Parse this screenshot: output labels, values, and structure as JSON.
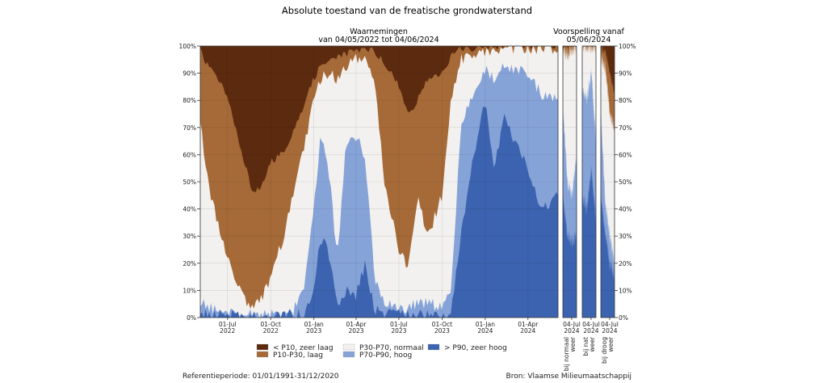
{
  "title": "Absolute toestand van de freatische grondwaterstand",
  "footer_left": "Referentieperiode: 01/01/1991-31/12/2020",
  "footer_right": "Bron: Vlaamse Milieumaatschappij",
  "colors": {
    "zeer_laag": "#5c2a0f",
    "laag": "#a66a38",
    "normaal": "#f3f1ef",
    "hoog": "#86a3d8",
    "zeer_hoog": "#3c63b0"
  },
  "chart_data": {
    "type": "area",
    "stacking": "stacked-percent",
    "yticks": [
      "0%",
      "10%",
      "20%",
      "30%",
      "40%",
      "50%",
      "60%",
      "70%",
      "80%",
      "90%",
      "100%"
    ],
    "ylim": [
      0,
      100
    ],
    "legend": [
      {
        "key": "zeer_laag",
        "label": "< P10, zeer laag"
      },
      {
        "key": "laag",
        "label": "P10-P30, laag"
      },
      {
        "key": "normaal",
        "label": "P30-P70, normaal"
      },
      {
        "key": "hoog",
        "label": "P70-P90, hoog"
      },
      {
        "key": "zeer_hoog",
        "label": "> P90, zeer hoog"
      }
    ],
    "observations": {
      "header_line1": "Waarnemingen",
      "header_line2": "van 04/05/2022 tot 04/06/2024",
      "xlim": [
        "2022-05-04",
        "2024-06-04"
      ],
      "xticks": [
        {
          "date": "2022-07-01",
          "label1": "01-Jul",
          "label2": "2022"
        },
        {
          "date": "2022-10-01",
          "label1": "01-Oct",
          "label2": "2022"
        },
        {
          "date": "2023-01-01",
          "label1": "01-Jan",
          "label2": "2023"
        },
        {
          "date": "2023-04-01",
          "label1": "01-Apr",
          "label2": "2023"
        },
        {
          "date": "2023-07-01",
          "label1": "01-Jul",
          "label2": "2023"
        },
        {
          "date": "2023-10-01",
          "label1": "01-Oct",
          "label2": "2023"
        },
        {
          "date": "2024-01-01",
          "label1": "01-Jan",
          "label2": "2024"
        },
        {
          "date": "2024-04-01",
          "label1": "01-Apr",
          "label2": "2024"
        }
      ],
      "note": "cumulative upper boundaries (%) of classes from bottom: zeer hoog, hoog, normaal, laag",
      "keyframes": [
        {
          "date": "2022-05-04",
          "zeer_hoog": 1,
          "hoog": 5,
          "normaal": 72,
          "laag": 98
        },
        {
          "date": "2022-05-20",
          "zeer_hoog": 1,
          "hoog": 4,
          "normaal": 50,
          "laag": 93
        },
        {
          "date": "2022-06-10",
          "zeer_hoog": 1,
          "hoog": 3,
          "normaal": 35,
          "laag": 88
        },
        {
          "date": "2022-07-01",
          "zeer_hoog": 1,
          "hoog": 2,
          "normaal": 22,
          "laag": 82
        },
        {
          "date": "2022-08-01",
          "zeer_hoog": 1,
          "hoog": 1,
          "normaal": 8,
          "laag": 60
        },
        {
          "date": "2022-08-25",
          "zeer_hoog": 0,
          "hoog": 1,
          "normaal": 3,
          "laag": 45
        },
        {
          "date": "2022-09-15",
          "zeer_hoog": 0,
          "hoog": 1,
          "normaal": 8,
          "laag": 50
        },
        {
          "date": "2022-10-01",
          "zeer_hoog": 0,
          "hoog": 1,
          "normaal": 15,
          "laag": 57
        },
        {
          "date": "2022-11-01",
          "zeer_hoog": 1,
          "hoog": 1,
          "normaal": 32,
          "laag": 62
        },
        {
          "date": "2022-11-20",
          "zeer_hoog": 1,
          "hoog": 3,
          "normaal": 48,
          "laag": 70
        },
        {
          "date": "2022-12-10",
          "zeer_hoog": 1,
          "hoog": 10,
          "normaal": 62,
          "laag": 78
        },
        {
          "date": "2023-01-01",
          "zeer_hoog": 8,
          "hoog": 40,
          "normaal": 80,
          "laag": 88
        },
        {
          "date": "2023-01-15",
          "zeer_hoog": 30,
          "hoog": 68,
          "normaal": 88,
          "laag": 93
        },
        {
          "date": "2023-02-01",
          "zeer_hoog": 25,
          "hoog": 55,
          "normaal": 90,
          "laag": 95
        },
        {
          "date": "2023-02-20",
          "zeer_hoog": 3,
          "hoog": 22,
          "normaal": 88,
          "laag": 96
        },
        {
          "date": "2023-03-10",
          "zeer_hoog": 10,
          "hoog": 65,
          "normaal": 92,
          "laag": 97
        },
        {
          "date": "2023-04-01",
          "zeer_hoog": 8,
          "hoog": 66,
          "normaal": 95,
          "laag": 98
        },
        {
          "date": "2023-04-20",
          "zeer_hoog": 20,
          "hoog": 60,
          "normaal": 96,
          "laag": 99
        },
        {
          "date": "2023-05-10",
          "zeer_hoog": 3,
          "hoog": 15,
          "normaal": 88,
          "laag": 98
        },
        {
          "date": "2023-06-01",
          "zeer_hoog": 1,
          "hoog": 6,
          "normaal": 50,
          "laag": 94
        },
        {
          "date": "2023-07-01",
          "zeer_hoog": 1,
          "hoog": 4,
          "normaal": 25,
          "laag": 85
        },
        {
          "date": "2023-07-20",
          "zeer_hoog": 1,
          "hoog": 3,
          "normaal": 18,
          "laag": 75
        },
        {
          "date": "2023-08-10",
          "zeer_hoog": 1,
          "hoog": 6,
          "normaal": 45,
          "laag": 80
        },
        {
          "date": "2023-09-01",
          "zeer_hoog": 1,
          "hoog": 5,
          "normaal": 30,
          "laag": 88
        },
        {
          "date": "2023-10-01",
          "zeer_hoog": 1,
          "hoog": 4,
          "normaal": 45,
          "laag": 90
        },
        {
          "date": "2023-10-20",
          "zeer_hoog": 2,
          "hoog": 10,
          "normaal": 80,
          "laag": 96
        },
        {
          "date": "2023-11-10",
          "zeer_hoog": 30,
          "hoog": 70,
          "normaal": 95,
          "laag": 99
        },
        {
          "date": "2023-12-01",
          "zeer_hoog": 55,
          "hoog": 80,
          "normaal": 97,
          "laag": 99
        },
        {
          "date": "2024-01-01",
          "zeer_hoog": 80,
          "hoog": 92,
          "normaal": 98,
          "laag": 100
        },
        {
          "date": "2024-01-20",
          "zeer_hoog": 55,
          "hoog": 88,
          "normaal": 98,
          "laag": 100
        },
        {
          "date": "2024-02-10",
          "zeer_hoog": 75,
          "hoog": 93,
          "normaal": 99,
          "laag": 100
        },
        {
          "date": "2024-03-01",
          "zeer_hoog": 65,
          "hoog": 92,
          "normaal": 99,
          "laag": 100
        },
        {
          "date": "2024-04-01",
          "zeer_hoog": 55,
          "hoog": 90,
          "normaal": 99,
          "laag": 100
        },
        {
          "date": "2024-05-01",
          "zeer_hoog": 40,
          "hoog": 82,
          "normaal": 99,
          "laag": 100
        },
        {
          "date": "2024-06-04",
          "zeer_hoog": 45,
          "hoog": 80,
          "normaal": 99,
          "laag": 100
        }
      ]
    },
    "forecast": {
      "header_line1": "Voorspelling vanaf",
      "header_line2": "05/06/2024",
      "xlim": [
        "2024-06-05",
        "2024-07-20"
      ],
      "panels": [
        {
          "name": "normaal",
          "xtick": {
            "date": "2024-07-04",
            "label1": "04-Jul",
            "label2": "2024"
          },
          "caption_line1": "bij normaal",
          "caption_line2": "weer",
          "keyframes": [
            {
              "date": "2024-06-05",
              "zeer_hoog": 45,
              "hoog": 78,
              "normaal": 98,
              "laag": 100
            },
            {
              "date": "2024-06-20",
              "zeer_hoog": 30,
              "hoog": 50,
              "normaal": 97,
              "laag": 100
            },
            {
              "date": "2024-07-05",
              "zeer_hoog": 28,
              "hoog": 45,
              "normaal": 99,
              "laag": 100
            },
            {
              "date": "2024-07-20",
              "zeer_hoog": 30,
              "hoog": 60,
              "normaal": 99,
              "laag": 100
            }
          ]
        },
        {
          "name": "nat",
          "xtick": {
            "date": "2024-07-04",
            "label1": "04-Jul",
            "label2": "2024"
          },
          "caption_line1": "bij nat",
          "caption_line2": "weer",
          "keyframes": [
            {
              "date": "2024-06-05",
              "zeer_hoog": 45,
              "hoog": 85,
              "normaal": 100,
              "laag": 100
            },
            {
              "date": "2024-06-20",
              "zeer_hoog": 40,
              "hoog": 80,
              "normaal": 100,
              "laag": 100
            },
            {
              "date": "2024-07-05",
              "zeer_hoog": 55,
              "hoog": 90,
              "normaal": 100,
              "laag": 100
            },
            {
              "date": "2024-07-20",
              "zeer_hoog": 35,
              "hoog": 65,
              "normaal": 100,
              "laag": 100
            }
          ]
        },
        {
          "name": "droog",
          "xtick": {
            "date": "2024-07-04",
            "label1": "04-Jul",
            "label2": "2024"
          },
          "caption_line1": "bij droog",
          "caption_line2": "weer",
          "keyframes": [
            {
              "date": "2024-06-05",
              "zeer_hoog": 45,
              "hoog": 75,
              "normaal": 96,
              "laag": 99
            },
            {
              "date": "2024-06-20",
              "zeer_hoog": 30,
              "hoog": 42,
              "normaal": 92,
              "laag": 98
            },
            {
              "date": "2024-07-05",
              "zeer_hoog": 20,
              "hoog": 30,
              "normaal": 75,
              "laag": 90
            },
            {
              "date": "2024-07-20",
              "zeer_hoog": 15,
              "hoog": 20,
              "normaal": 70,
              "laag": 82
            }
          ]
        }
      ]
    }
  }
}
